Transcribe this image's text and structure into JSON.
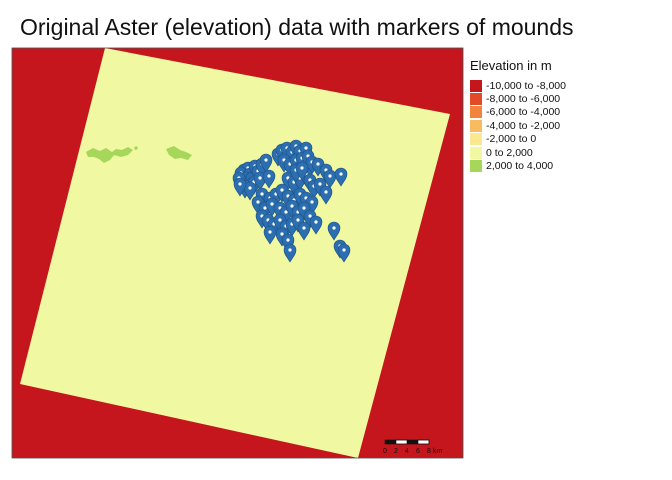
{
  "title": "Original Aster (elevation) data with markers of mounds",
  "legend": {
    "title": "Elevation in m",
    "items": [
      {
        "label": "-10,000 to -8,000",
        "color": "#c4161c"
      },
      {
        "label": "-8,000 to -6,000",
        "color": "#e34a2a"
      },
      {
        "label": "-6,000 to -4,000",
        "color": "#f3843e"
      },
      {
        "label": "-4,000 to -2,000",
        "color": "#f8bb5f"
      },
      {
        "label": "-2,000 to 0",
        "color": "#fbe98f"
      },
      {
        "label": "0 to 2,000",
        "color": "#f0f8a2"
      },
      {
        "label": "2,000 to 4,000",
        "color": "#a6d75b"
      }
    ]
  },
  "map": {
    "background_color": "#c4161c",
    "raster_color": "#f0f8a2",
    "highland_color": "#a6d75b",
    "marker_color": "#2c6fb0",
    "marker_label": "mounds"
  },
  "scale_bar": {
    "ticks": [
      "0",
      "2",
      "4",
      "6",
      "8"
    ],
    "unit": "km"
  }
}
